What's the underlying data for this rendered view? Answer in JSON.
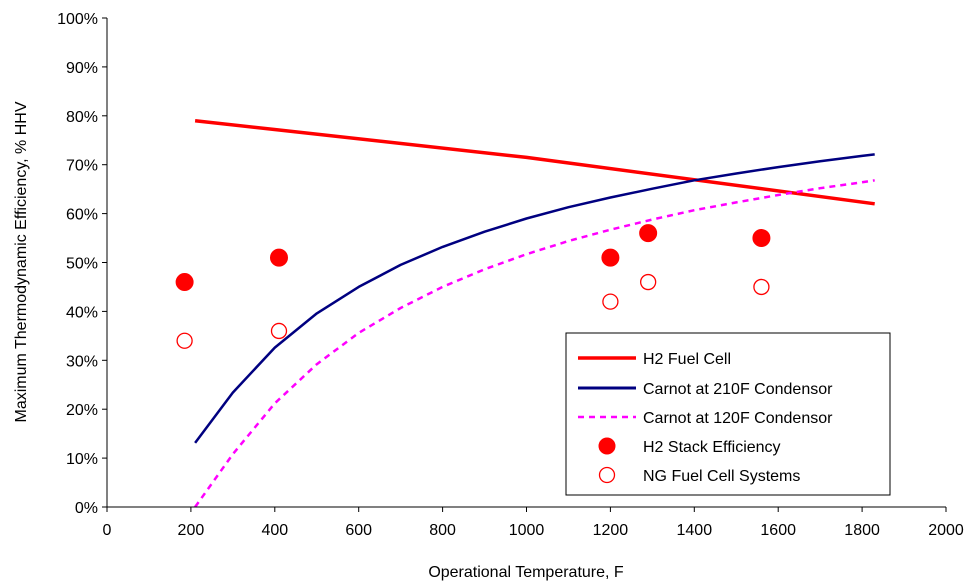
{
  "chart_data": {
    "type": "line",
    "xlabel": "Operational Temperature, F",
    "ylabel": "Maximum Thermodynamic Efficiency, % HHV",
    "xlim": [
      0,
      2000
    ],
    "ylim": [
      0,
      100
    ],
    "x_ticks": [
      0,
      200,
      400,
      600,
      800,
      1000,
      1200,
      1400,
      1600,
      1800,
      2000
    ],
    "y_ticks": [
      0,
      10,
      20,
      30,
      40,
      50,
      60,
      70,
      80,
      90,
      100
    ],
    "x_tick_labels": [
      "0",
      "200",
      "400",
      "600",
      "800",
      "1000",
      "1200",
      "1400",
      "1600",
      "1800",
      "2000"
    ],
    "y_tick_labels": [
      "0%",
      "10%",
      "20%",
      "30%",
      "40%",
      "50%",
      "60%",
      "70%",
      "80%",
      "90%",
      "100%"
    ],
    "grid": false,
    "legend_position": "bottom-right",
    "series": [
      {
        "name": "H2 Fuel Cell",
        "kind": "line",
        "style": "solid",
        "color": "#ff0000",
        "x": [
          210,
          1000,
          1830
        ],
        "y": [
          79,
          71.5,
          62
        ]
      },
      {
        "name": "Carnot at 210F Condensor",
        "kind": "line",
        "style": "solid",
        "color": "#000080",
        "x": [
          210,
          300,
          400,
          500,
          600,
          700,
          800,
          900,
          1000,
          1100,
          1200,
          1300,
          1400,
          1500,
          1600,
          1700,
          1800,
          1830
        ],
        "y": [
          13.1,
          23.4,
          32.6,
          39.6,
          45.0,
          49.5,
          53.2,
          56.3,
          59.0,
          61.3,
          63.3,
          65.1,
          66.8,
          68.2,
          69.5,
          70.7,
          71.8,
          72.1
        ]
      },
      {
        "name": "Carnot at 120F Condensor",
        "kind": "line",
        "style": "dashed",
        "color": "#ff00ff",
        "x": [
          210,
          300,
          400,
          500,
          600,
          700,
          800,
          900,
          1000,
          1100,
          1200,
          1300,
          1400,
          1500,
          1600,
          1700,
          1800,
          1830
        ],
        "y": [
          0,
          10.8,
          21.2,
          29.2,
          35.6,
          40.7,
          45.0,
          48.6,
          51.7,
          54.4,
          56.7,
          58.8,
          60.7,
          62.3,
          63.8,
          65.2,
          66.4,
          66.8
        ]
      },
      {
        "name": "H2 Stack Efficiency",
        "kind": "scatter",
        "marker": "filled-circle",
        "color": "#ff0000",
        "x": [
          185,
          410,
          1200,
          1290,
          1560
        ],
        "y": [
          46,
          51,
          51,
          56,
          55
        ]
      },
      {
        "name": "NG Fuel Cell Systems",
        "kind": "scatter",
        "marker": "open-circle",
        "color": "#ff0000",
        "x": [
          185,
          410,
          1200,
          1290,
          1560
        ],
        "y": [
          34,
          36,
          42,
          46,
          45
        ]
      }
    ]
  }
}
